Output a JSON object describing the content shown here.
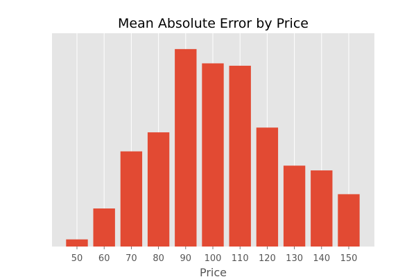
{
  "chart_data": {
    "type": "bar",
    "title": "Mean Absolute Error by Price",
    "xlabel": "Price",
    "ylabel": "",
    "categories": [
      "50",
      "60",
      "70",
      "80",
      "90",
      "100",
      "110",
      "120",
      "130",
      "140",
      "150"
    ],
    "values": [
      3,
      16,
      40,
      48,
      83,
      77,
      76,
      50,
      34,
      32,
      22
    ],
    "ylim": [
      0,
      85
    ],
    "y_ticks_visible": false,
    "grid": true,
    "grid_axis": "x",
    "background": "#E5E5E5",
    "bar_color": "#E24A33",
    "grid_color": "#FFFFFF"
  }
}
